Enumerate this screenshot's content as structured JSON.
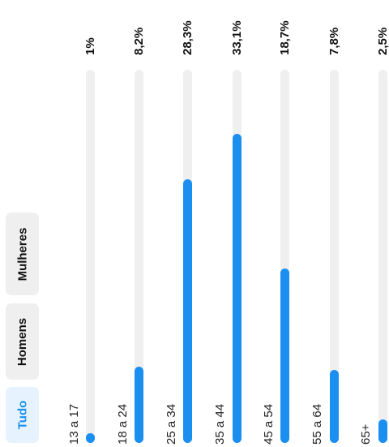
{
  "filters": {
    "all": "Tudo",
    "men": "Homens",
    "women": "Mulheres",
    "active": "all"
  },
  "chart_data": {
    "type": "bar",
    "categories": [
      "13 a 17",
      "18 a 24",
      "25 a 34",
      "35 a 44",
      "45 a 54",
      "55 a 64",
      "65+"
    ],
    "values": [
      1,
      8.2,
      28.3,
      33.1,
      18.7,
      7.8,
      2.5
    ],
    "value_labels": [
      "1%",
      "8,2%",
      "28,3%",
      "33,1%",
      "18,7%",
      "7,8%",
      "2,5%"
    ],
    "ylim": [
      0,
      100
    ],
    "bar_color": "#1b8ff0",
    "track_color": "#efefef"
  }
}
